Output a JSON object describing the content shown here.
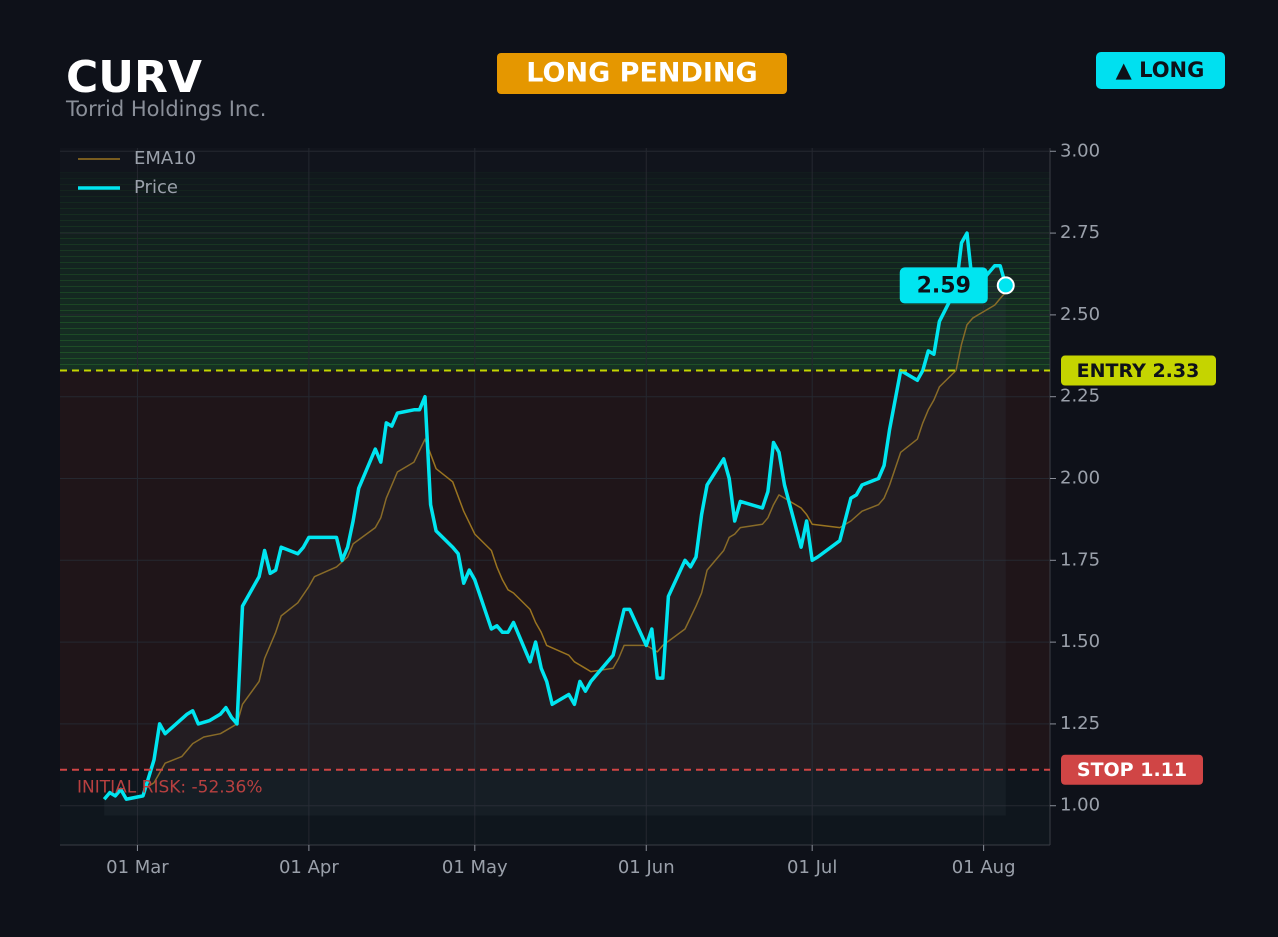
{
  "header": {
    "ticker": "CURV",
    "company": "Torrid Holdings Inc.",
    "status": "LONG PENDING",
    "direction": "▲ LONG"
  },
  "chart_data": {
    "type": "line",
    "xlim": [
      "02-15",
      "08-13"
    ],
    "xticks": [
      {
        "value": "03-01",
        "label": "01 Mar"
      },
      {
        "value": "04-01",
        "label": "01 Apr"
      },
      {
        "value": "05-01",
        "label": "01 May"
      },
      {
        "value": "06-01",
        "label": "01 Jun"
      },
      {
        "value": "07-01",
        "label": "01 Jul"
      },
      {
        "value": "08-01",
        "label": "01 Aug"
      }
    ],
    "ylim": [
      0.88,
      3.01
    ],
    "yticks": [
      {
        "value": 1,
        "label": "1.00"
      },
      {
        "value": 1.25,
        "label": "1.25"
      },
      {
        "value": 1.5,
        "label": "1.50"
      },
      {
        "value": 1.75,
        "label": "1.75"
      },
      {
        "value": 2,
        "label": "2.00"
      },
      {
        "value": 2.25,
        "label": "2.25"
      },
      {
        "value": 2.5,
        "label": "2.50"
      },
      {
        "value": 2.75,
        "label": "2.75"
      },
      {
        "value": 3,
        "label": "3.00"
      }
    ],
    "grid": true,
    "legend": "upper left",
    "entry": {
      "value": 2.33,
      "label": "ENTRY 2.33",
      "color": "#c5d400"
    },
    "stop": {
      "value": 1.11,
      "label": "STOP 1.11",
      "color": "#d04545"
    },
    "risk_annotation": "INITIAL RISK: -52.36%",
    "series": [
      {
        "name": "EMA10",
        "color": "#9a7420",
        "x": [
          "03-02",
          "03-04",
          "03-05",
          "03-06",
          "03-09",
          "03-11",
          "03-13",
          "03-16",
          "03-18",
          "03-19",
          "03-20",
          "03-23",
          "03-24",
          "03-26",
          "03-27",
          "03-30",
          "04-01",
          "04-02",
          "04-06",
          "04-08",
          "04-09",
          "04-13",
          "04-14",
          "04-15",
          "04-17",
          "04-20",
          "04-22",
          "04-24",
          "04-27",
          "04-29",
          "05-01",
          "05-04",
          "05-05",
          "05-06",
          "05-07",
          "05-08",
          "05-11",
          "05-12",
          "05-13",
          "05-14",
          "05-18",
          "05-19",
          "05-21",
          "05-22",
          "05-26",
          "05-27",
          "05-28",
          "06-01",
          "06-03",
          "06-04",
          "06-08",
          "06-10",
          "06-11",
          "06-12",
          "06-15",
          "06-16",
          "06-17",
          "06-18",
          "06-22",
          "06-23",
          "06-24",
          "06-25",
          "06-26",
          "06-29",
          "06-30",
          "07-01",
          "07-06",
          "07-08",
          "07-10",
          "07-13",
          "07-14",
          "07-15",
          "07-16",
          "07-17",
          "07-20",
          "07-21",
          "07-22",
          "07-23",
          "07-24",
          "07-27",
          "07-28",
          "07-29",
          "07-30",
          "07-31",
          "08-01",
          "08-03",
          "08-04",
          "08-05"
        ],
        "values": [
          1.05,
          1.07,
          1.1,
          1.13,
          1.15,
          1.19,
          1.21,
          1.22,
          1.24,
          1.25,
          1.31,
          1.38,
          1.45,
          1.53,
          1.58,
          1.62,
          1.67,
          1.7,
          1.73,
          1.76,
          1.8,
          1.85,
          1.88,
          1.94,
          2.02,
          2.05,
          2.12,
          2.03,
          1.99,
          1.9,
          1.83,
          1.78,
          1.73,
          1.69,
          1.66,
          1.65,
          1.6,
          1.56,
          1.53,
          1.49,
          1.46,
          1.44,
          1.42,
          1.41,
          1.42,
          1.45,
          1.49,
          1.49,
          1.47,
          1.49,
          1.54,
          1.61,
          1.65,
          1.72,
          1.78,
          1.82,
          1.83,
          1.85,
          1.86,
          1.88,
          1.92,
          1.95,
          1.94,
          1.91,
          1.89,
          1.86,
          1.85,
          1.87,
          1.9,
          1.92,
          1.94,
          1.98,
          2.03,
          2.08,
          2.12,
          2.17,
          2.21,
          2.24,
          2.28,
          2.33,
          2.41,
          2.47,
          2.49,
          2.5,
          2.51,
          2.53,
          2.55,
          2.57
        ]
      },
      {
        "name": "Price",
        "color": "#00e5f0",
        "x": [
          "02-23",
          "02-24",
          "02-25",
          "02-26",
          "02-27",
          "03-02",
          "03-04",
          "03-05",
          "03-06",
          "03-08",
          "03-10",
          "03-11",
          "03-12",
          "03-14",
          "03-16",
          "03-17",
          "03-18",
          "03-19",
          "03-20",
          "03-23",
          "03-24",
          "03-25",
          "03-26",
          "03-27",
          "03-30",
          "03-31",
          "04-01",
          "04-02",
          "04-06",
          "04-07",
          "04-08",
          "04-09",
          "04-10",
          "04-13",
          "04-14",
          "04-15",
          "04-16",
          "04-17",
          "04-20",
          "04-21",
          "04-22",
          "04-23",
          "04-24",
          "04-27",
          "04-28",
          "04-29",
          "04-30",
          "05-01",
          "05-04",
          "05-05",
          "05-06",
          "05-07",
          "05-08",
          "05-11",
          "05-12",
          "05-13",
          "05-14",
          "05-15",
          "05-18",
          "05-19",
          "05-20",
          "05-21",
          "05-22",
          "05-26",
          "05-28",
          "05-29",
          "06-01",
          "06-02",
          "06-03",
          "06-04",
          "06-05",
          "06-08",
          "06-09",
          "06-10",
          "06-11",
          "06-12",
          "06-15",
          "06-16",
          "06-17",
          "06-18",
          "06-22",
          "06-23",
          "06-24",
          "06-25",
          "06-26",
          "06-29",
          "06-30",
          "07-01",
          "07-02",
          "07-06",
          "07-08",
          "07-09",
          "07-10",
          "07-13",
          "07-14",
          "07-15",
          "07-17",
          "07-20",
          "07-21",
          "07-22",
          "07-23",
          "07-24",
          "07-27",
          "07-28",
          "07-29",
          "07-30",
          "07-31",
          "08-01",
          "08-03",
          "08-04",
          "08-05"
        ],
        "values": [
          1.02,
          1.04,
          1.03,
          1.05,
          1.02,
          1.03,
          1.14,
          1.25,
          1.22,
          1.25,
          1.28,
          1.29,
          1.25,
          1.26,
          1.28,
          1.3,
          1.27,
          1.25,
          1.61,
          1.7,
          1.78,
          1.71,
          1.72,
          1.79,
          1.77,
          1.79,
          1.82,
          1.82,
          1.82,
          1.75,
          1.79,
          1.87,
          1.97,
          2.09,
          2.05,
          2.17,
          2.16,
          2.2,
          2.21,
          2.21,
          2.25,
          1.92,
          1.84,
          1.79,
          1.77,
          1.68,
          1.72,
          1.69,
          1.54,
          1.55,
          1.53,
          1.53,
          1.56,
          1.44,
          1.5,
          1.42,
          1.38,
          1.31,
          1.34,
          1.31,
          1.38,
          1.35,
          1.38,
          1.46,
          1.6,
          1.6,
          1.49,
          1.54,
          1.39,
          1.39,
          1.64,
          1.75,
          1.73,
          1.76,
          1.89,
          1.98,
          2.06,
          2.0,
          1.87,
          1.93,
          1.91,
          1.96,
          2.11,
          2.08,
          1.98,
          1.79,
          1.87,
          1.75,
          1.76,
          1.81,
          1.94,
          1.95,
          1.98,
          2.0,
          2.04,
          2.15,
          2.33,
          2.3,
          2.33,
          2.39,
          2.38,
          2.48,
          2.58,
          2.72,
          2.75,
          2.59,
          2.58,
          2.61,
          2.65,
          2.65,
          2.59
        ]
      }
    ]
  }
}
